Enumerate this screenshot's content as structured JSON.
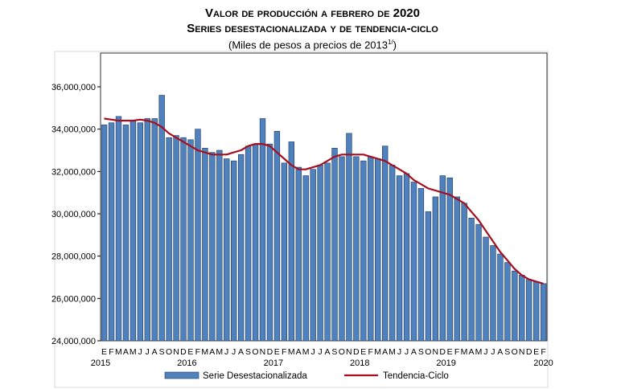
{
  "chart_data": {
    "type": "bar",
    "title": "Valor de producción a febrero de 2020",
    "subtitle": "Series desestacionalizada y de tendencia-ciclo",
    "unit_note": "(Miles de pesos a precios de 2013",
    "unit_note_sup": "1/",
    "unit_note_end": ")",
    "ylim": [
      24000000,
      36000000
    ],
    "yticks": [
      "24,000,000",
      "26,000,000",
      "28,000,000",
      "30,000,000",
      "32,000,000",
      "34,000,000",
      "36,000,000"
    ],
    "month_labels": [
      "E",
      "F",
      "M",
      "A",
      "M",
      "J",
      "J",
      "A",
      "S",
      "O",
      "N",
      "D"
    ],
    "years": [
      "2015",
      "2016",
      "2017",
      "2018",
      "2019",
      "2020"
    ],
    "legend_position": "bottom",
    "colors": {
      "bar": "#4f81bd",
      "bar_edge": "#1f3864",
      "line": "#a50f1e"
    },
    "series": [
      {
        "name": "Serie Desestacionalizada",
        "type": "bar",
        "values": [
          34.2,
          34.3,
          34.6,
          34.2,
          34.4,
          34.3,
          34.5,
          34.5,
          35.6,
          33.6,
          33.7,
          33.6,
          33.5,
          34.0,
          33.1,
          32.9,
          33.0,
          32.6,
          32.5,
          32.8,
          33.2,
          33.3,
          34.5,
          33.3,
          33.9,
          32.4,
          33.4,
          32.2,
          31.8,
          32.1,
          32.3,
          32.4,
          33.1,
          32.7,
          33.8,
          32.7,
          32.5,
          32.7,
          32.6,
          33.2,
          32.3,
          31.8,
          31.9,
          31.5,
          31.2,
          30.1,
          30.8,
          31.8,
          31.7,
          30.8,
          30.5,
          29.8,
          29.5,
          28.9,
          28.5,
          28.1,
          27.7,
          27.3,
          27.1,
          26.9,
          26.8,
          26.7
        ]
      },
      {
        "name": "Tendencia-Ciclo",
        "type": "line",
        "values": [
          34.5,
          34.45,
          34.4,
          34.4,
          34.4,
          34.45,
          34.4,
          34.3,
          34.1,
          33.8,
          33.6,
          33.4,
          33.2,
          33.0,
          32.9,
          32.8,
          32.8,
          32.8,
          32.9,
          33.0,
          33.2,
          33.3,
          33.3,
          33.2,
          32.9,
          32.6,
          32.3,
          32.1,
          32.1,
          32.2,
          32.3,
          32.5,
          32.7,
          32.8,
          32.8,
          32.8,
          32.8,
          32.7,
          32.6,
          32.5,
          32.3,
          32.1,
          31.9,
          31.6,
          31.4,
          31.2,
          31.1,
          31.0,
          30.9,
          30.7,
          30.5,
          30.1,
          29.7,
          29.2,
          28.7,
          28.2,
          27.8,
          27.4,
          27.1,
          26.9,
          26.8,
          26.7
        ]
      }
    ],
    "values_unit_multiplier": 1000000
  }
}
